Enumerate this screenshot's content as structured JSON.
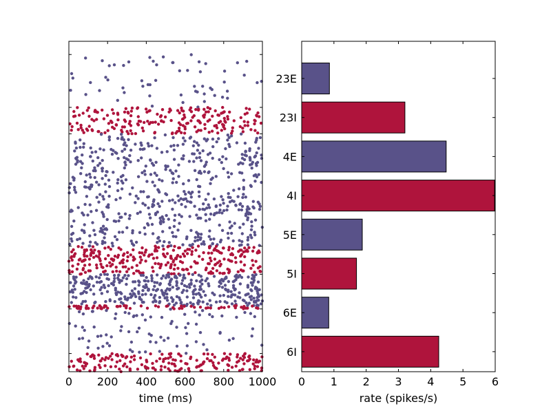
{
  "colors": {
    "excitatory": "#595289",
    "inhibitory": "#af143c"
  },
  "chart_data": [
    {
      "type": "scatter",
      "subtype": "raster",
      "xlabel": "time (ms)",
      "ylabel": "",
      "xlim": [
        0,
        1000
      ],
      "xticks": [
        0,
        200,
        400,
        600,
        800,
        1000
      ],
      "xtick_labels": [
        "0",
        "200",
        "400",
        "600",
        "800",
        "1000"
      ],
      "ytick_labels_visible": false,
      "grid": false,
      "populations": [
        {
          "name": "23E",
          "color": "excitatory",
          "band": [
            0.96,
            0.8
          ],
          "density": 0.75
        },
        {
          "name": "23I",
          "color": "inhibitory",
          "band": [
            0.8,
            0.72
          ],
          "density": 5.6
        },
        {
          "name": "4E",
          "color": "excitatory",
          "band": [
            0.72,
            0.38
          ],
          "density": 3.6
        },
        {
          "name": "4I",
          "color": "inhibitory",
          "band": [
            0.38,
            0.295
          ],
          "density": 7.0
        },
        {
          "name": "5E",
          "color": "excitatory",
          "band": [
            0.295,
            0.2
          ],
          "density": 8.0
        },
        {
          "name": "5I",
          "color": "inhibitory",
          "band": [
            0.2,
            0.19
          ],
          "density": 14.0
        },
        {
          "name": "6E",
          "color": "excitatory",
          "band": [
            0.19,
            0.055
          ],
          "density": 1.3
        },
        {
          "name": "6I",
          "color": "inhibitory",
          "band": [
            0.055,
            0.0
          ],
          "density": 7.0
        }
      ]
    },
    {
      "type": "bar",
      "orientation": "horizontal",
      "categories": [
        "23E",
        "23I",
        "4E",
        "4I",
        "5E",
        "5I",
        "6E",
        "6I"
      ],
      "values": [
        0.86,
        3.2,
        4.48,
        5.98,
        1.88,
        1.7,
        0.84,
        4.25
      ],
      "bar_colors": [
        "excitatory",
        "inhibitory",
        "excitatory",
        "inhibitory",
        "excitatory",
        "inhibitory",
        "excitatory",
        "inhibitory"
      ],
      "xlabel": "rate (spikes/s)",
      "ylabel": "",
      "xlim": [
        0,
        6
      ],
      "xticks": [
        0,
        1,
        2,
        3,
        4,
        5,
        6
      ],
      "xtick_labels": [
        "0",
        "1",
        "2",
        "3",
        "4",
        "5",
        "6"
      ],
      "grid": false
    }
  ]
}
